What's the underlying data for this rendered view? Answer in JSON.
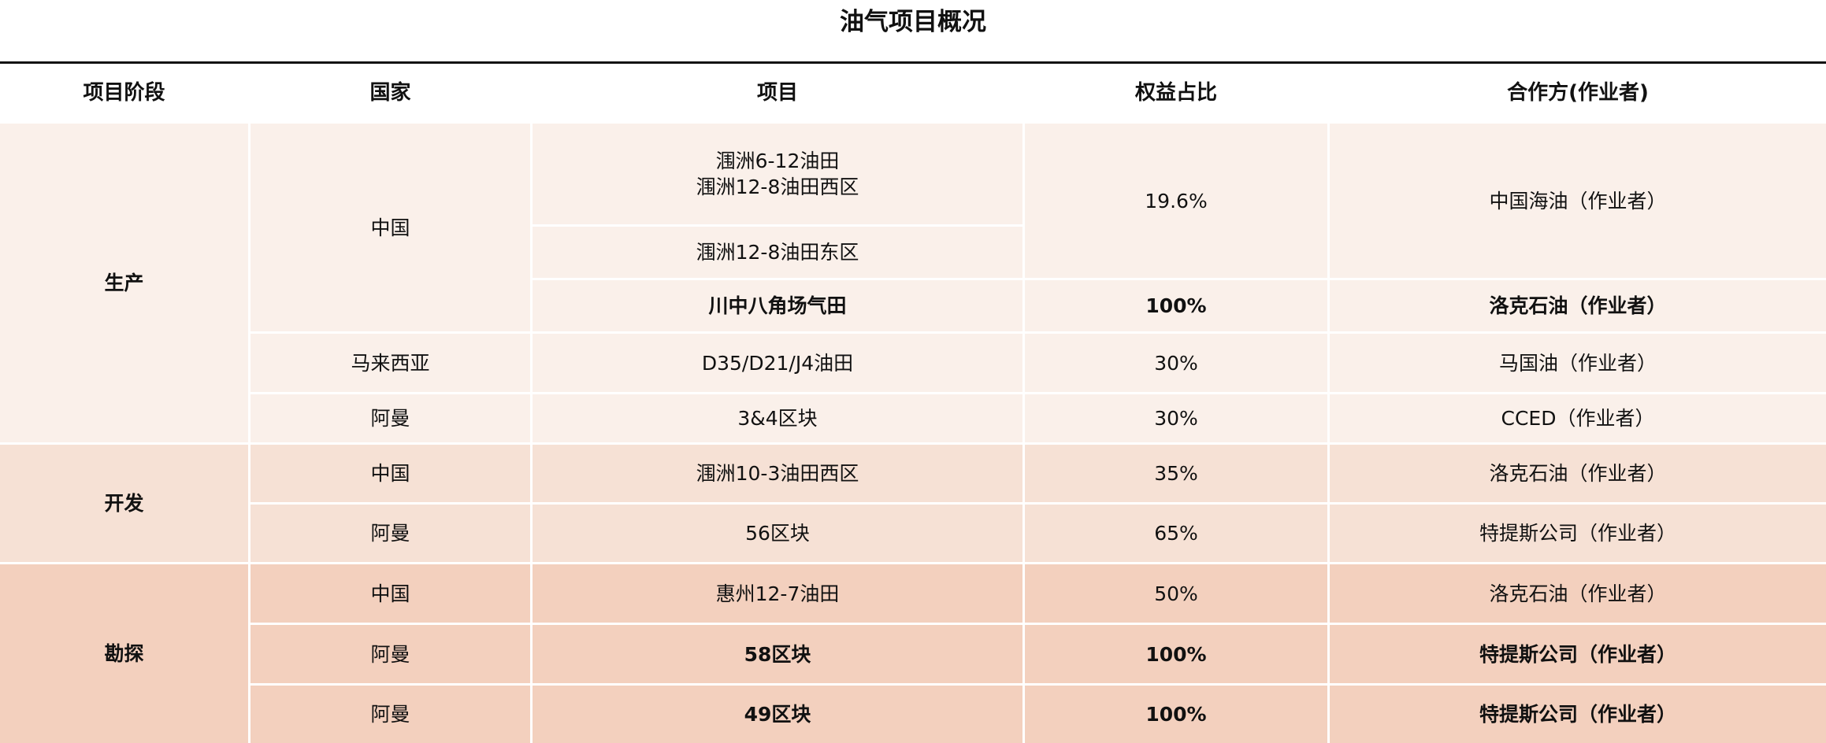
{
  "title": "油气项目概况",
  "colors": {
    "production_bg": "#FAF0EA",
    "development_bg": "#F6E1D5",
    "exploration_bg": "#F3D0BE"
  },
  "headers": [
    "项目阶段",
    "国家",
    "项目",
    "权益占比",
    "合作方(作业者)"
  ],
  "stages": {
    "production": "生产",
    "development": "开发",
    "exploration": "勘探"
  },
  "rows": [
    {
      "country": "中国",
      "project": "涠洲6-12油田\n涠洲12-8油田西区",
      "equity": "19.6%",
      "partner": "中国海油（作业者）"
    },
    {
      "project": "涠洲12-8油田东区"
    },
    {
      "project": "川中八角场气田",
      "equity": "100%",
      "partner": "洛克石油（作业者）"
    },
    {
      "country": "马来西亚",
      "project": "D35/D21/J4油田",
      "equity": "30%",
      "partner": "马国油（作业者）"
    },
    {
      "country": "阿曼",
      "project": "3&4区块",
      "equity": "30%",
      "partner": "CCED（作业者）"
    },
    {
      "country": "中国",
      "project": "涠洲10-3油田西区",
      "equity": "35%",
      "partner": "洛克石油（作业者）"
    },
    {
      "country": "阿曼",
      "project": "56区块",
      "equity": "65%",
      "partner": "特提斯公司（作业者）"
    },
    {
      "country": "中国",
      "project": "惠州12-7油田",
      "equity": "50%",
      "partner": "洛克石油（作业者）"
    },
    {
      "country": "阿曼",
      "project": "58区块",
      "equity": "100%",
      "partner": "特提斯公司（作业者）"
    },
    {
      "country": "阿曼",
      "project": "49区块",
      "equity": "100%",
      "partner": "特提斯公司（作业者）"
    }
  ]
}
